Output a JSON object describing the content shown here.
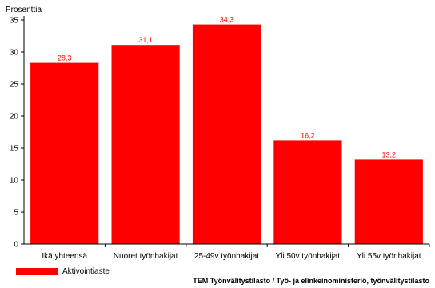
{
  "chart_data": {
    "type": "bar",
    "ylabel": "Prosenttia",
    "categories": [
      "Ikä yhteensä",
      "Nuoret työnhakijat",
      "25-49v työnhakijat",
      "Yli 50v työnhakijat",
      "Yli 55v työnhakijat"
    ],
    "series": [
      {
        "name": "Aktivointiaste",
        "values": [
          28.3,
          31.1,
          34.3,
          16.2,
          13.2
        ],
        "labels": [
          "28,3",
          "31,1",
          "34,3",
          "16,2",
          "13,2"
        ]
      }
    ],
    "ylim": [
      0,
      35
    ],
    "yticks": [
      0,
      5,
      10,
      15,
      20,
      25,
      30,
      35
    ],
    "grid": false,
    "legend_position": "bottom-left",
    "bar_color": "#ff0000",
    "label_color": "#ff0000"
  },
  "source": "TEM Työnvälitystilasto / Työ- ja elinkeinoministeriö, työnvälitystilasto"
}
